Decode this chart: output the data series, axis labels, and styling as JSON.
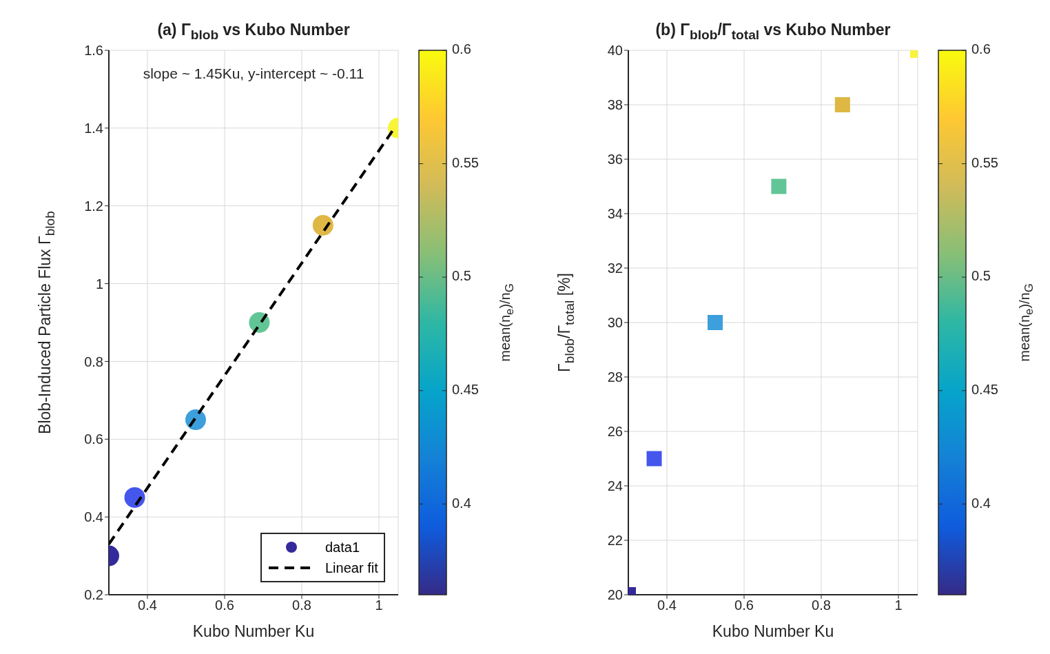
{
  "chart_data": [
    {
      "type": "scatter",
      "title": "(a) Γ$_{blob}$ vs Kubo Number",
      "xlabel": "Kubo Number Ku",
      "ylabel": "Blob-Induced Particle Flux Γ$_{blob}$",
      "clabel": "mean(n$_{e}$)/n$_{G}$",
      "annotations": [
        "slope ~ 1.45Ku, y-intercept ~ -0.11"
      ],
      "xlim": [
        0.3,
        1.05
      ],
      "xticks": [
        0.4,
        0.6,
        0.8,
        1
      ],
      "ylim": [
        0.2,
        1.6
      ],
      "yticks": [
        0.2,
        0.4,
        0.6,
        0.8,
        1,
        1.2,
        1.4,
        1.6
      ],
      "clim": [
        0.36,
        0.6
      ],
      "cticks": [
        0.4,
        0.45,
        0.5,
        0.55,
        0.6
      ],
      "grid": true,
      "legend": "bottom right",
      "series": [
        {
          "name": "data1",
          "marker": "circle",
          "x": [
            0.3,
            0.367,
            0.525,
            0.69,
            0.855,
            1.05
          ],
          "values": [
            0.3,
            0.45,
            0.65,
            0.9,
            1.15,
            1.4
          ],
          "colors": [
            "#352a9a",
            "#4456ec",
            "#3d9fdc",
            "#62c595",
            "#dfb744",
            "#f8f43a"
          ]
        },
        {
          "name": "Linear fit",
          "type": "line",
          "color": "#000000",
          "line_style": "dashed",
          "x": [
            0.3,
            1.04
          ],
          "values": [
            0.33,
            1.4
          ]
        }
      ]
    },
    {
      "type": "scatter",
      "title": "(b) Γ$_{blob}$/Γ$_{total}$ vs Kubo Number",
      "xlabel": "Kubo Number Ku",
      "ylabel": "Γ$_{blob}$/Γ$_{total}$ [%]",
      "clabel": "mean(n$_{e}$)/n$_{G}$",
      "xlim": [
        0.3,
        1.05
      ],
      "xticks": [
        0.4,
        0.6,
        0.8,
        1
      ],
      "ylim": [
        20,
        40
      ],
      "yticks": [
        20,
        22,
        24,
        26,
        28,
        30,
        32,
        34,
        36,
        38,
        40
      ],
      "clim": [
        0.36,
        0.6
      ],
      "cticks": [
        0.4,
        0.45,
        0.5,
        0.55,
        0.6
      ],
      "grid": true,
      "series": [
        {
          "marker": "square",
          "x": [
            0.3,
            0.367,
            0.525,
            0.69,
            0.855,
            1.05
          ],
          "values": [
            20,
            25,
            30,
            35,
            38,
            40
          ],
          "colors": [
            "#352a9a",
            "#4456ec",
            "#3d9fdc",
            "#62c595",
            "#dfb744",
            "#f8f43a"
          ]
        }
      ]
    }
  ]
}
